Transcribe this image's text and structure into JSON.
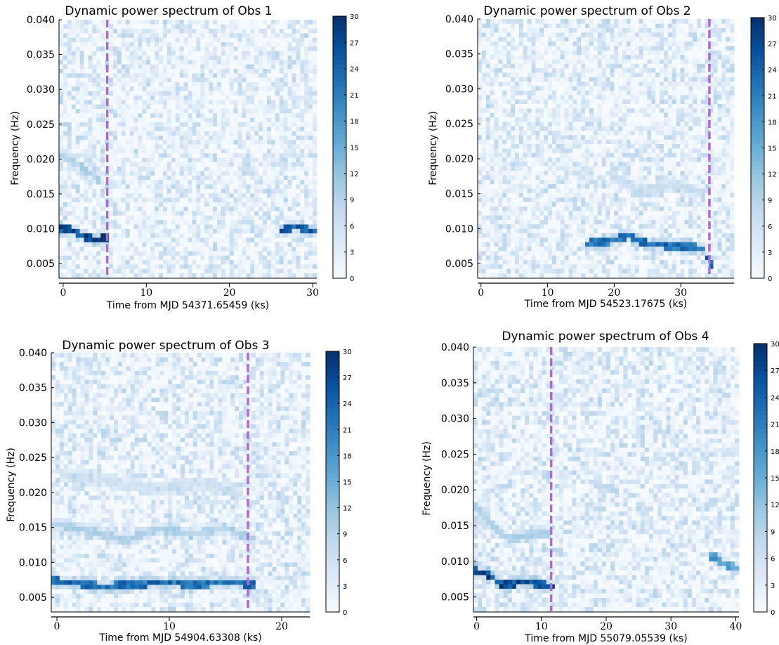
{
  "chart_data": [
    {
      "type": "heatmap",
      "title": "Dynamic power spectrum of Obs 1",
      "xlabel": "Time from MJD 54371.65459 (ks)",
      "ylabel": "Frequency (Hz)",
      "xlim": [
        -0.5,
        30.5
      ],
      "ylim": [
        0.003,
        0.04
      ],
      "xticks": [
        0,
        10,
        20,
        30
      ],
      "yticks": [
        0.005,
        0.01,
        0.015,
        0.02,
        0.025,
        0.03,
        0.035,
        0.04
      ],
      "ytick_labels": [
        "0.005",
        "0.010",
        "0.015",
        "0.020",
        "0.025",
        "0.030",
        "0.035",
        "0.040"
      ],
      "colorbar": {
        "min": 0,
        "max": 30,
        "ticks": [
          0,
          3,
          6,
          9,
          12,
          15,
          18,
          21,
          24,
          27,
          30
        ],
        "colormap": "Blues"
      },
      "marker_line_x": 5.3,
      "marker_color": "#b366d6",
      "ridges": [
        {
          "points": [
            [
              0,
              0.01
            ],
            [
              1,
              0.0098
            ],
            [
              2,
              0.0091
            ],
            [
              3,
              0.0087
            ],
            [
              4,
              0.0084
            ],
            [
              5,
              0.0086
            ]
          ],
          "power": 28
        },
        {
          "points": [
            [
              26.5,
              0.0098
            ],
            [
              28,
              0.0103
            ],
            [
              30,
              0.0096
            ]
          ],
          "power": 26
        },
        {
          "points": [
            [
              0,
              0.0205
            ],
            [
              2,
              0.019
            ],
            [
              4,
              0.0172
            ]
          ],
          "power": 10
        }
      ]
    },
    {
      "type": "heatmap",
      "title": "Dynamic power spectrum of Obs 2",
      "xlabel": "Time from MJD 54523.17675 (ks)",
      "ylabel": "Frequency (Hz)",
      "xlim": [
        -0.5,
        38
      ],
      "ylim": [
        0.003,
        0.04
      ],
      "xticks": [
        0,
        10,
        20,
        30
      ],
      "yticks": [
        0.005,
        0.01,
        0.015,
        0.02,
        0.025,
        0.03,
        0.035,
        0.04
      ],
      "ytick_labels": [
        "0.005",
        "0.010",
        "0.015",
        "0.020",
        "0.025",
        "0.030",
        "0.035",
        "0.040"
      ],
      "colorbar": {
        "min": 0,
        "max": 30,
        "ticks": [
          0,
          3,
          6,
          9,
          12,
          15,
          18,
          21,
          24,
          27,
          30
        ],
        "colormap": "Blues"
      },
      "marker_line_x": 34.3,
      "marker_color": "#b366d6",
      "ridges": [
        {
          "points": [
            [
              16,
              0.0079
            ],
            [
              19,
              0.0081
            ],
            [
              22,
              0.009
            ],
            [
              25,
              0.0078
            ],
            [
              28,
              0.0076
            ],
            [
              31,
              0.0075
            ],
            [
              33.5,
              0.007
            ],
            [
              34.3,
              0.005
            ]
          ],
          "power": 24
        },
        {
          "points": [
            [
              20,
              0.0175
            ],
            [
              24,
              0.015
            ],
            [
              29,
              0.0165
            ],
            [
              32,
              0.0155
            ]
          ],
          "power": 7
        }
      ]
    },
    {
      "type": "heatmap",
      "title": "Dynamic power spectrum of Obs 3",
      "xlabel": "Time from MJD 54904.63308 (ks)",
      "ylabel": "Frequency (Hz)",
      "xlim": [
        -0.5,
        22.5
      ],
      "ylim": [
        0.003,
        0.04
      ],
      "xticks": [
        0,
        10,
        20
      ],
      "yticks": [
        0.005,
        0.01,
        0.015,
        0.02,
        0.025,
        0.03,
        0.035,
        0.04
      ],
      "ytick_labels": [
        "0.005",
        "0.010",
        "0.015",
        "0.020",
        "0.025",
        "0.030",
        "0.035",
        "0.040"
      ],
      "colorbar": {
        "min": 0,
        "max": 30,
        "ticks": [
          0,
          3,
          6,
          9,
          12,
          15,
          18,
          21,
          24,
          27,
          30
        ],
        "colormap": "Blues"
      },
      "marker_line_x": 17.0,
      "marker_color": "#b366d6",
      "ridges": [
        {
          "points": [
            [
              0,
              0.0073
            ],
            [
              2,
              0.0071
            ],
            [
              4,
              0.0065
            ],
            [
              6,
              0.0068
            ],
            [
              8,
              0.007
            ],
            [
              10,
              0.0072
            ],
            [
              12,
              0.0068
            ],
            [
              14,
              0.0071
            ],
            [
              16,
              0.0072
            ],
            [
              17,
              0.0068
            ]
          ],
          "power": 24
        },
        {
          "points": [
            [
              0,
              0.0155
            ],
            [
              3,
              0.0145
            ],
            [
              6,
              0.0132
            ],
            [
              9,
              0.0148
            ],
            [
              12,
              0.014
            ],
            [
              15,
              0.015
            ],
            [
              17,
              0.0135
            ]
          ],
          "power": 10
        },
        {
          "points": [
            [
              1,
              0.0225
            ],
            [
              5,
              0.0215
            ],
            [
              9,
              0.0205
            ],
            [
              13,
              0.0212
            ],
            [
              16,
              0.02
            ]
          ],
          "power": 6
        }
      ]
    },
    {
      "type": "heatmap",
      "title": "Dynamic power spectrum of Obs 4",
      "xlabel": "Time from MJD 55079.05539 (ks)",
      "ylabel": "Frequency (Hz)",
      "xlim": [
        -0.5,
        40.5
      ],
      "ylim": [
        0.003,
        0.04
      ],
      "xticks": [
        0,
        10,
        20,
        30,
        40
      ],
      "yticks": [
        0.005,
        0.01,
        0.015,
        0.02,
        0.025,
        0.03,
        0.035,
        0.04
      ],
      "ytick_labels": [
        "0.005",
        "0.010",
        "0.015",
        "0.020",
        "0.025",
        "0.030",
        "0.035",
        "0.040"
      ],
      "colorbar": {
        "min": 0,
        "max": 30,
        "ticks": [
          0,
          3,
          6,
          9,
          12,
          15,
          18,
          21,
          24,
          27,
          30
        ],
        "colormap": "Blues"
      },
      "marker_line_x": 11.5,
      "marker_color": "#b366d6",
      "ridges": [
        {
          "points": [
            [
              0,
              0.0087
            ],
            [
              2,
              0.008
            ],
            [
              4,
              0.0066
            ],
            [
              6,
              0.007
            ],
            [
              8,
              0.0072
            ],
            [
              10,
              0.0068
            ],
            [
              11.5,
              0.0065
            ]
          ],
          "power": 28
        },
        {
          "points": [
            [
              0,
              0.0175
            ],
            [
              2.5,
              0.015
            ],
            [
              5,
              0.013
            ],
            [
              8,
              0.0138
            ],
            [
              11,
              0.014
            ]
          ],
          "power": 10
        },
        {
          "points": [
            [
              36.5,
              0.0108
            ],
            [
              38,
              0.0098
            ],
            [
              40,
              0.009
            ]
          ],
          "power": 18
        }
      ]
    }
  ]
}
